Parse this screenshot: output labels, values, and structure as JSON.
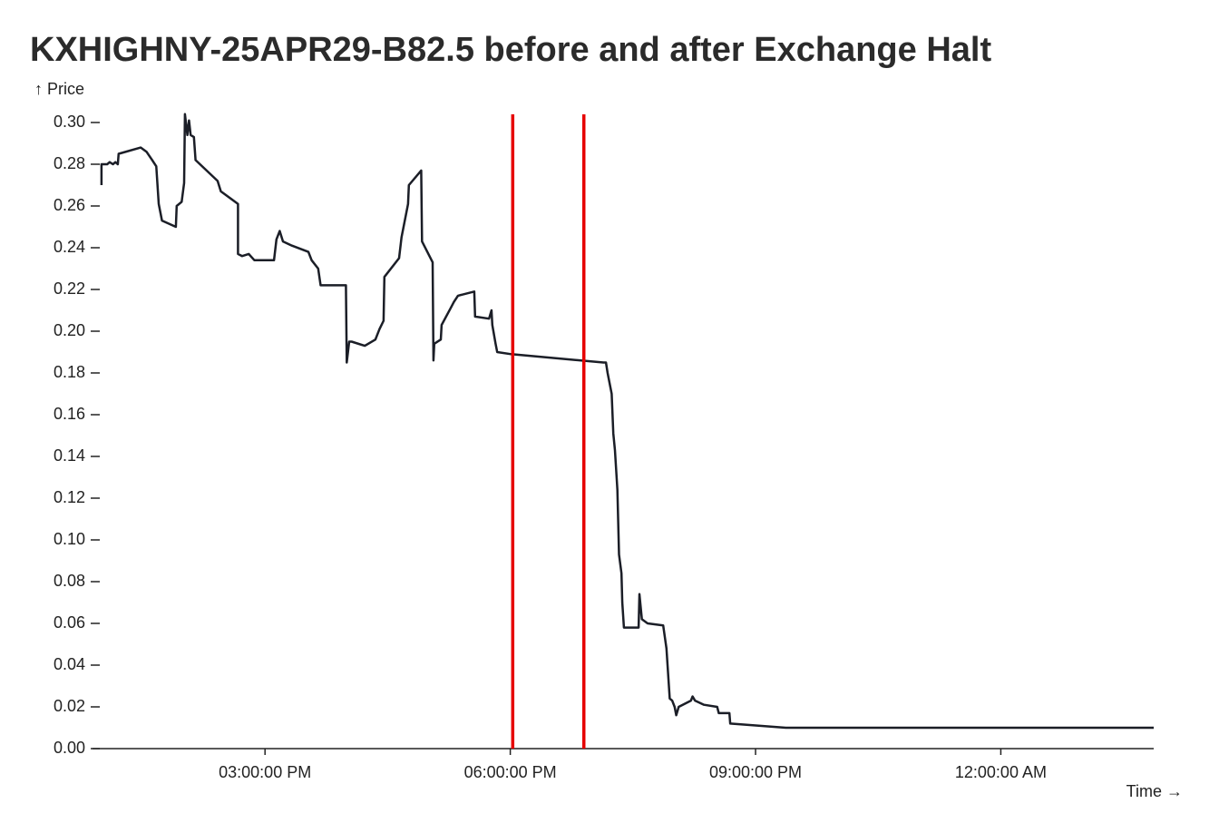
{
  "chart_data": {
    "type": "line",
    "title": "KXHIGHNY-25APR29-B82.5 before and after Exchange Halt",
    "y_label": "↑ Price",
    "x_label": "Time →",
    "x": [
      13.0,
      13.0,
      13.07,
      13.1,
      13.14,
      13.17,
      13.2,
      13.21,
      13.48,
      13.55,
      13.62,
      13.67,
      13.7,
      13.74,
      13.91,
      13.92,
      13.98,
      14.01,
      14.02,
      14.05,
      14.07,
      14.09,
      14.13,
      14.15,
      14.42,
      14.46,
      14.67,
      14.67,
      14.72,
      14.8,
      14.87,
      15.11,
      15.14,
      15.18,
      15.22,
      15.33,
      15.53,
      15.57,
      15.65,
      15.68,
      15.99,
      16.0,
      16.03,
      16.06,
      16.22,
      16.35,
      16.4,
      16.45,
      16.46,
      16.64,
      16.67,
      16.75,
      16.76,
      16.91,
      16.92,
      17.05,
      17.06,
      17.07,
      17.15,
      17.16,
      17.27,
      17.31,
      17.36,
      17.56,
      17.57,
      17.74,
      17.77,
      17.78,
      17.82,
      17.84,
      18.01,
      19.14,
      19.17,
      19.19,
      19.24,
      19.26,
      19.28,
      19.31,
      19.33,
      19.36,
      19.37,
      19.39,
      19.57,
      19.58,
      19.61,
      19.68,
      19.87,
      19.91,
      19.95,
      19.98,
      20.01,
      20.03,
      20.06,
      20.21,
      20.23,
      20.26,
      20.37,
      20.53,
      20.55,
      20.68,
      20.69,
      21.37,
      25.87
    ],
    "values": [
      0.27,
      0.28,
      0.28,
      0.281,
      0.28,
      0.281,
      0.28,
      0.285,
      0.288,
      0.286,
      0.282,
      0.279,
      0.261,
      0.253,
      0.25,
      0.26,
      0.262,
      0.271,
      0.304,
      0.294,
      0.301,
      0.294,
      0.293,
      0.282,
      0.272,
      0.267,
      0.261,
      0.237,
      0.236,
      0.237,
      0.234,
      0.234,
      0.244,
      0.248,
      0.243,
      0.241,
      0.238,
      0.234,
      0.23,
      0.222,
      0.222,
      0.185,
      0.195,
      0.195,
      0.193,
      0.196,
      0.201,
      0.205,
      0.226,
      0.235,
      0.245,
      0.261,
      0.27,
      0.277,
      0.243,
      0.233,
      0.186,
      0.194,
      0.196,
      0.203,
      0.211,
      0.214,
      0.217,
      0.219,
      0.207,
      0.206,
      0.21,
      0.203,
      0.194,
      0.19,
      0.189,
      0.185,
      0.185,
      0.18,
      0.17,
      0.151,
      0.143,
      0.124,
      0.093,
      0.084,
      0.07,
      0.058,
      0.058,
      0.074,
      0.062,
      0.06,
      0.059,
      0.048,
      0.024,
      0.023,
      0.02,
      0.016,
      0.02,
      0.023,
      0.025,
      0.023,
      0.021,
      0.02,
      0.017,
      0.017,
      0.012,
      0.01,
      0.01
    ],
    "color": "#1b1e27",
    "vlines": [
      18.03,
      18.9
    ],
    "vline_color": "#e60000",
    "xlim": [
      12.89,
      25.87
    ],
    "xticks": [
      {
        "value": 15,
        "label": "03:00:00 PM"
      },
      {
        "value": 18,
        "label": "06:00:00 PM"
      },
      {
        "value": 21,
        "label": "09:00:00 PM"
      },
      {
        "value": 24,
        "label": "12:00:00 AM"
      }
    ],
    "ylim": [
      0,
      0.305
    ],
    "yticks": [
      {
        "value": 0,
        "label": "0.00"
      },
      {
        "value": 0.02,
        "label": "0.02"
      },
      {
        "value": 0.04,
        "label": "0.04"
      },
      {
        "value": 0.06,
        "label": "0.06"
      },
      {
        "value": 0.08,
        "label": "0.08"
      },
      {
        "value": 0.1,
        "label": "0.10"
      },
      {
        "value": 0.12,
        "label": "0.12"
      },
      {
        "value": 0.14,
        "label": "0.14"
      },
      {
        "value": 0.16,
        "label": "0.16"
      },
      {
        "value": 0.18,
        "label": "0.18"
      },
      {
        "value": 0.2,
        "label": "0.20"
      },
      {
        "value": 0.22,
        "label": "0.22"
      },
      {
        "value": 0.24,
        "label": "0.24"
      },
      {
        "value": 0.26,
        "label": "0.26"
      },
      {
        "value": 0.28,
        "label": "0.28"
      },
      {
        "value": 0.3,
        "label": "0.30"
      }
    ],
    "grid": false
  }
}
